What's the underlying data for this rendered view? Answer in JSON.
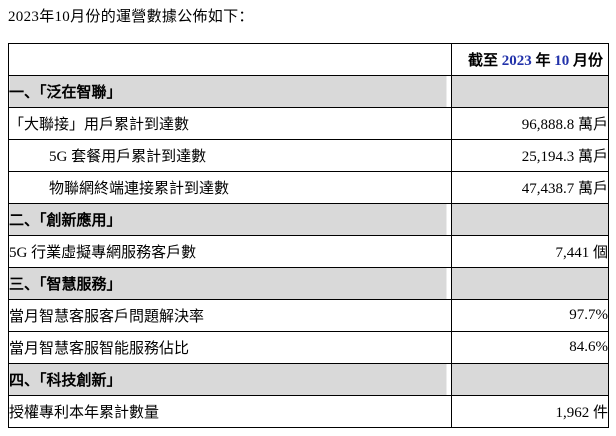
{
  "page": {
    "intro": "2023年10月份的運營數據公佈如下："
  },
  "colors": {
    "section_row_bg": "#d9d9d9",
    "table_border": "#000000",
    "header_digit_blue": "#2232aa",
    "text": "#000000",
    "background": "#ffffff"
  },
  "table": {
    "header": {
      "left_cell": "",
      "right_cell_full": "截至 2023 年 10 月份",
      "right_cell_parts": [
        {
          "text": "截至 "
        },
        {
          "text": "2023"
        },
        {
          "text": " 年 "
        },
        {
          "text": "10"
        },
        {
          "text": " 月份"
        }
      ]
    },
    "rows": [
      {
        "type": "section",
        "label": "一、「泛在智聯」",
        "value": ""
      },
      {
        "type": "item",
        "label": "「大聯接」用戶累計到達數",
        "value": "96,888.8 萬戶"
      },
      {
        "type": "item",
        "label": "5G 套餐用戶累計到達數",
        "value": "25,194.3 萬戶"
      },
      {
        "type": "item",
        "label": "物聯網終端連接累計到達數",
        "value": "47,438.7 萬戶"
      },
      {
        "type": "section",
        "label": "二、「創新應用」",
        "value": ""
      },
      {
        "type": "item",
        "label": "5G 行業虛擬專網服務客戶數",
        "value": "7,441 個"
      },
      {
        "type": "section",
        "label": "三、「智慧服務」",
        "value": ""
      },
      {
        "type": "item",
        "label": "當月智慧客服客戶問題解決率",
        "value": "97.7%"
      },
      {
        "type": "item",
        "label": "當月智慧客服智能服務佔比",
        "value": "84.6%"
      },
      {
        "type": "section",
        "label": "四、「科技創新」",
        "value": ""
      },
      {
        "type": "item",
        "label": "授權專利本年累計數量",
        "value": "1,962 件"
      }
    ]
  }
}
